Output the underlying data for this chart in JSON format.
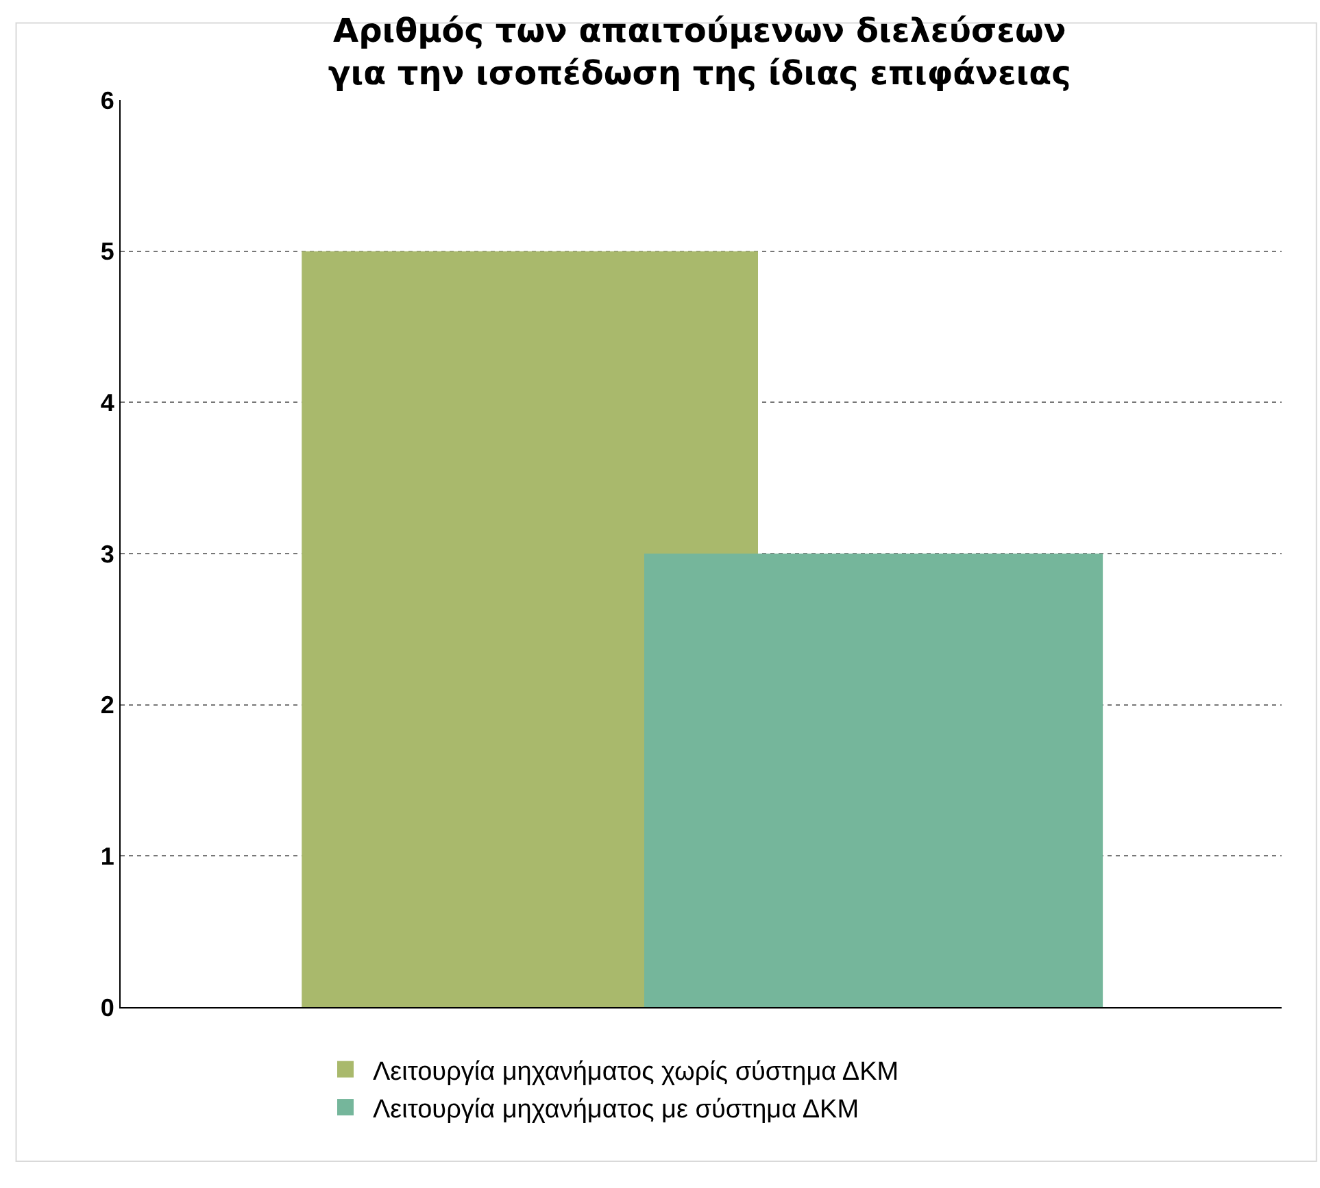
{
  "chart_data": {
    "type": "bar",
    "title": "Αριθμός των απαιτούμενων διελεύσεων\nγια την ισοπέδωση της ίδιας επιφάνειας",
    "categories": [
      null
    ],
    "series": [
      {
        "name": "Λειτουργία μηχανήματος χωρίς σύστημα ΔΚΜ",
        "color": "#a9b96c",
        "values": [
          5
        ]
      },
      {
        "name": "Λειτουργία μηχανήματος με σύστημα ΔΚΜ",
        "color": "#75b69b",
        "values": [
          3
        ]
      }
    ],
    "ylim": [
      0,
      6
    ],
    "yticks": [
      0,
      1,
      2,
      3,
      4,
      5,
      6
    ],
    "grid": "y",
    "legend": "bottom",
    "tick_labels": "y"
  }
}
